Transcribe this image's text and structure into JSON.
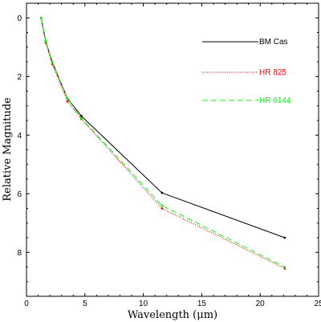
{
  "chart_data": {
    "type": "line",
    "xlabel": "Wavelength (μm)",
    "ylabel": "Relative Magnitude",
    "xlim": [
      0,
      25
    ],
    "ylim": [
      9.5,
      -0.5
    ],
    "y_inverted": true,
    "x_ticks": [
      0,
      5,
      10,
      15,
      20,
      25
    ],
    "y_ticks": [
      0,
      2,
      4,
      6,
      8
    ],
    "grid": false,
    "legend_position": "top-right",
    "series": [
      {
        "name": "BM Cas",
        "color": "#000000",
        "style": "solid",
        "points": [
          [
            1.25,
            0.0
          ],
          [
            1.65,
            0.8
          ],
          [
            2.2,
            1.5
          ],
          [
            3.5,
            2.75
          ],
          [
            4.7,
            3.35
          ],
          [
            11.6,
            5.97
          ],
          [
            22.1,
            7.5
          ]
        ]
      },
      {
        "name": "HR 825",
        "color": "#ff0000",
        "style": "dotted",
        "points": [
          [
            1.25,
            0.0
          ],
          [
            1.65,
            0.85
          ],
          [
            2.2,
            1.58
          ],
          [
            3.5,
            2.85
          ],
          [
            4.7,
            3.45
          ],
          [
            11.6,
            6.5
          ],
          [
            22.1,
            8.55
          ]
        ]
      },
      {
        "name": "HR 6144",
        "color": "#00ff00",
        "style": "dashed",
        "points": [
          [
            1.25,
            0.0
          ],
          [
            1.65,
            0.8
          ],
          [
            2.2,
            1.5
          ],
          [
            3.5,
            2.75
          ],
          [
            4.7,
            3.42
          ],
          [
            11.6,
            6.4
          ],
          [
            22.1,
            8.5
          ]
        ]
      }
    ]
  }
}
